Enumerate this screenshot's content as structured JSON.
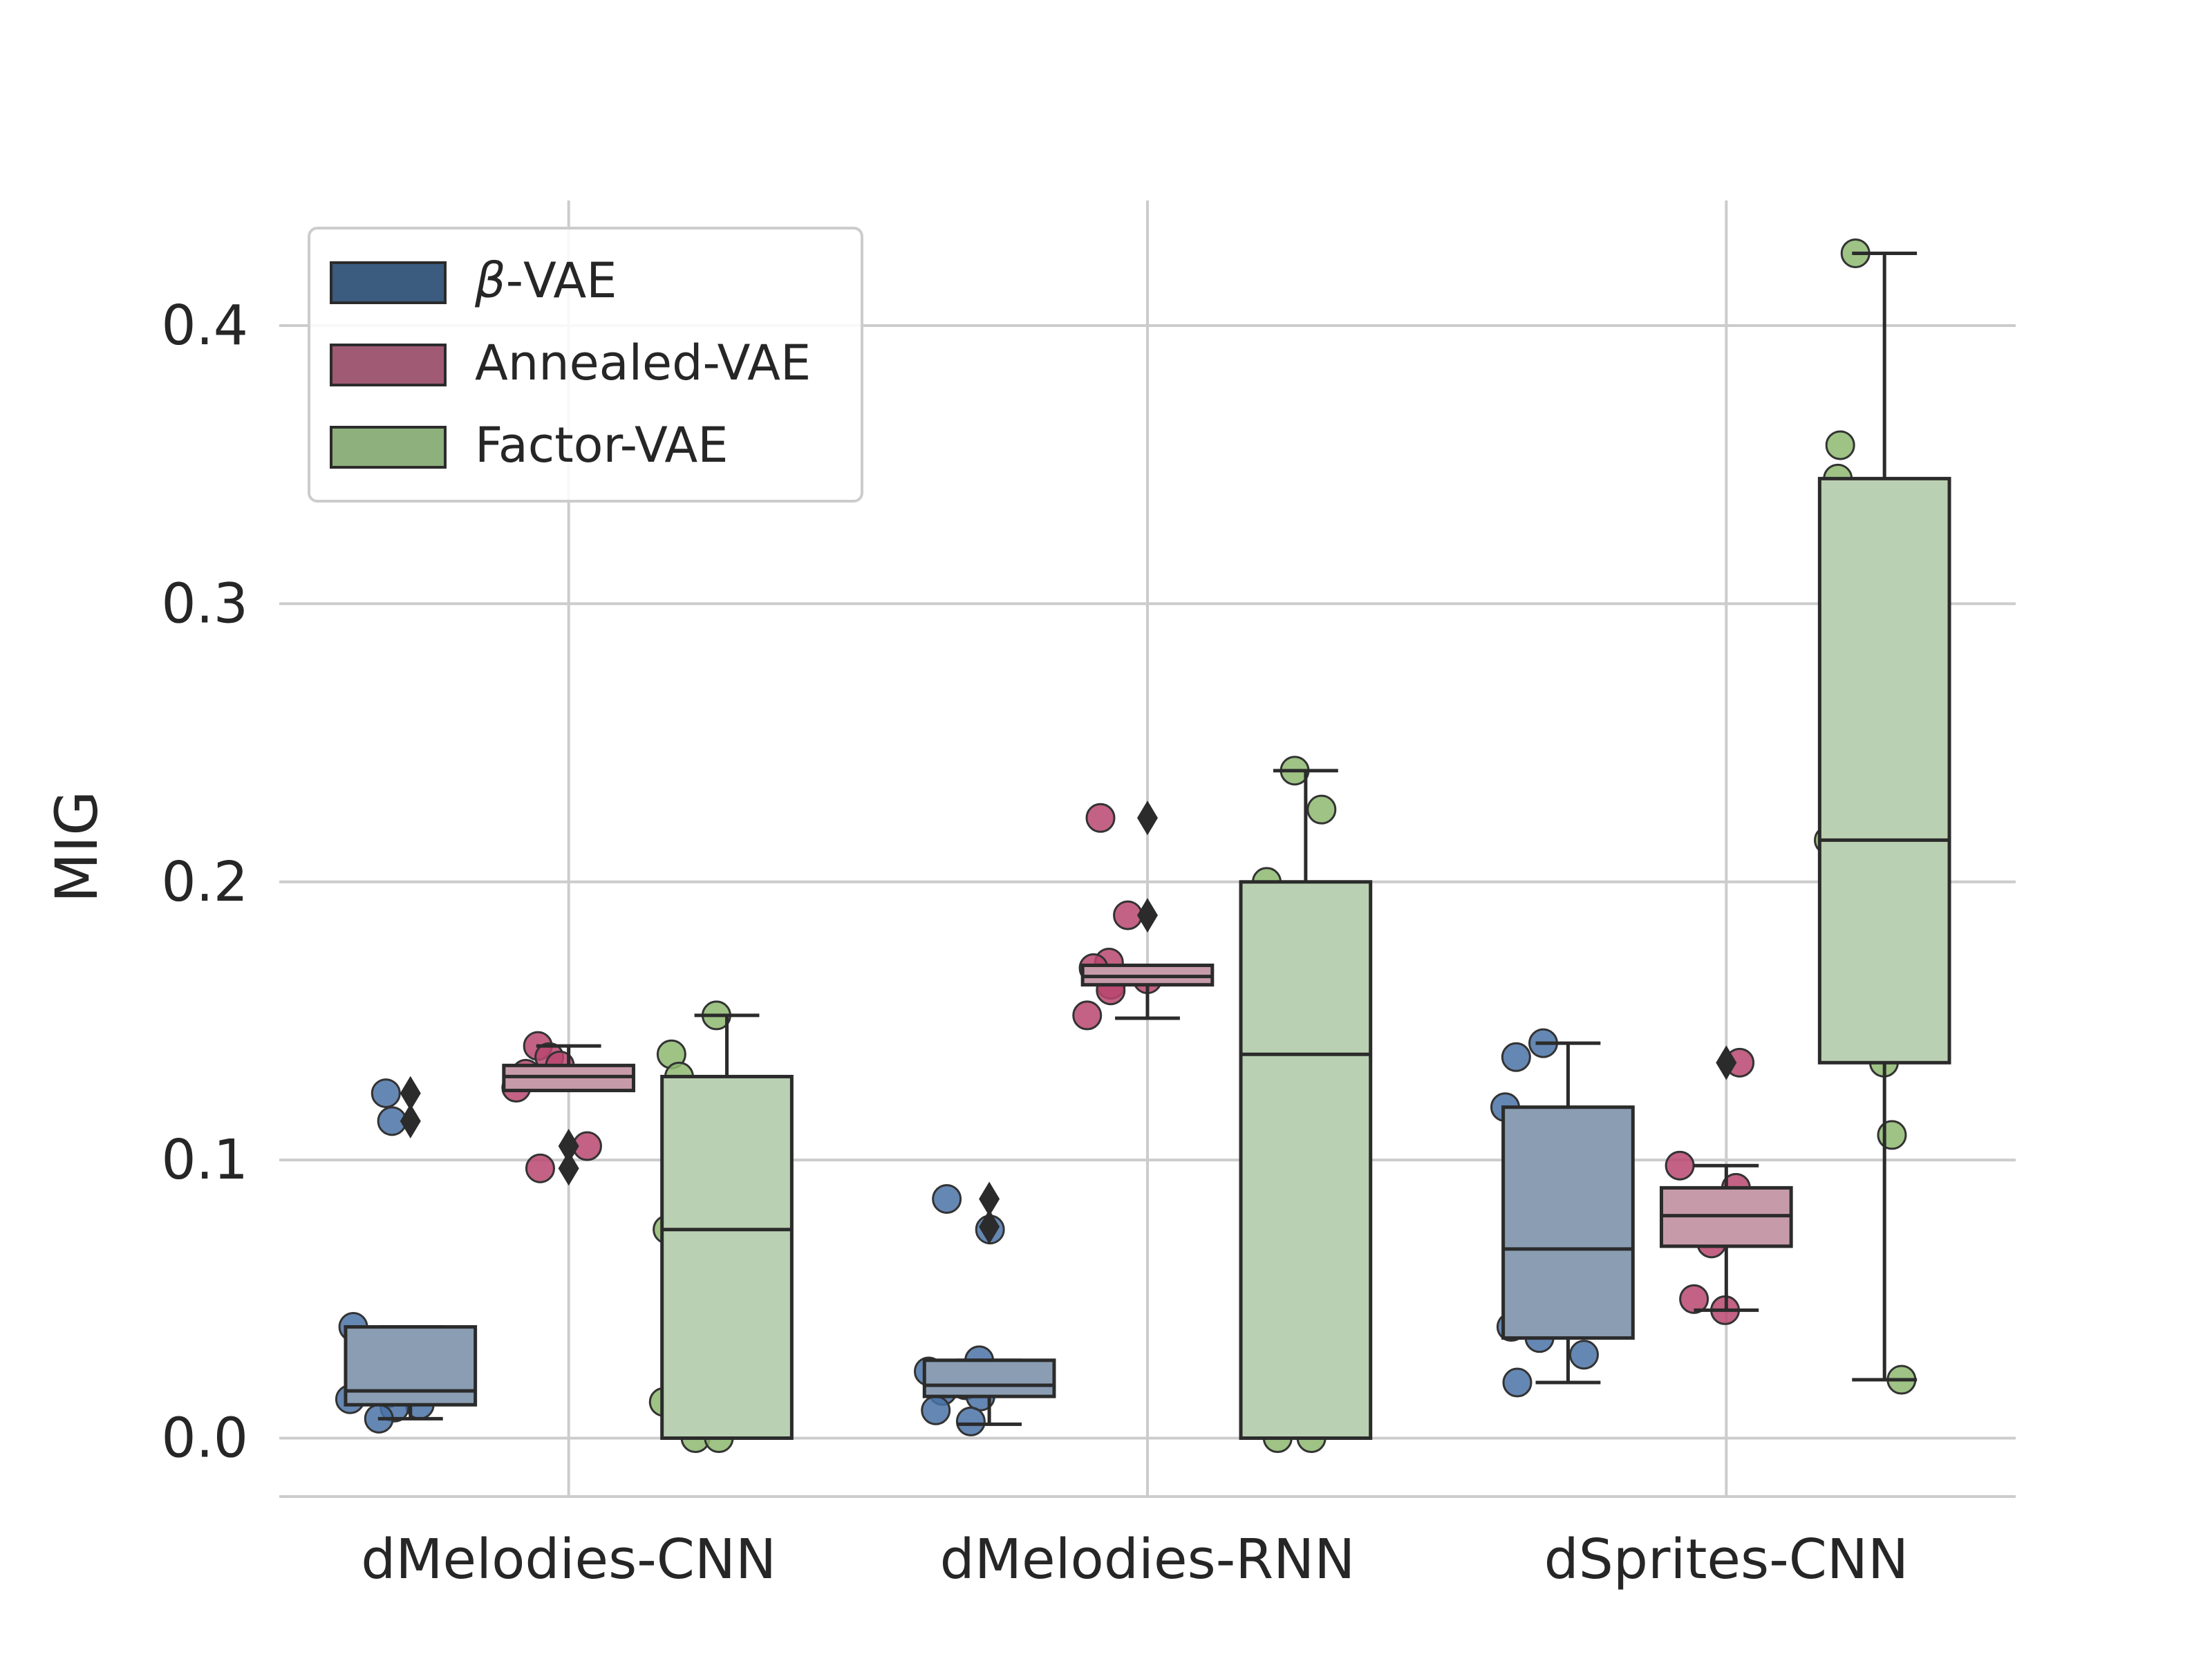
{
  "chart_data": {
    "type": "box",
    "ylabel": "MIG",
    "xlabel": "",
    "ylim": [
      -0.021,
      0.445
    ],
    "yticks": [
      0.0,
      0.1,
      0.2,
      0.3,
      0.4
    ],
    "ytick_labels": [
      "0.0",
      "0.1",
      "0.2",
      "0.3",
      "0.4"
    ],
    "categories": [
      "dMelodies-CNN",
      "dMelodies-RNN",
      "dSprites-CNN"
    ],
    "grid": true,
    "legend_position": "top-left",
    "series": [
      {
        "name": "β-VAE",
        "legend_prefix": "β",
        "legend_suffix": "-VAE",
        "color": "#3b5b7f",
        "box_color": "#8a9db3",
        "point_color": "#4a72a6",
        "boxes": [
          {
            "q1": 0.012,
            "median": 0.017,
            "q3": 0.04,
            "whislo": 0.007,
            "whishi": 0.04,
            "fliers": [
              0.114,
              0.124
            ]
          },
          {
            "q1": 0.015,
            "median": 0.019,
            "q3": 0.028,
            "whislo": 0.005,
            "whishi": 0.028,
            "fliers": [
              0.076,
              0.086
            ]
          },
          {
            "q1": 0.036,
            "median": 0.068,
            "q3": 0.119,
            "whislo": 0.02,
            "whishi": 0.142,
            "fliers": []
          }
        ],
        "points": [
          [
            0.124,
            0.114,
            0.04,
            0.022,
            0.017,
            0.016,
            0.014,
            0.012,
            0.011,
            0.007
          ],
          [
            0.086,
            0.075,
            0.028,
            0.024,
            0.019,
            0.017,
            0.015,
            0.01,
            0.006
          ],
          [
            0.142,
            0.137,
            0.119,
            0.071,
            0.068,
            0.04,
            0.036,
            0.03,
            0.02
          ]
        ]
      },
      {
        "name": "Annealed-VAE",
        "color": "#a05a74",
        "box_color": "#c79aa9",
        "point_color": "#b8466f",
        "boxes": [
          {
            "q1": 0.125,
            "median": 0.13,
            "q3": 0.134,
            "whislo": 0.125,
            "whishi": 0.141,
            "fliers": [
              0.105,
              0.097
            ]
          },
          {
            "q1": 0.163,
            "median": 0.166,
            "q3": 0.17,
            "whislo": 0.151,
            "whishi": 0.17,
            "fliers": [
              0.188,
              0.223
            ]
          },
          {
            "q1": 0.069,
            "median": 0.08,
            "q3": 0.09,
            "whislo": 0.046,
            "whishi": 0.098,
            "fliers": [
              0.135
            ]
          }
        ],
        "points": [
          [
            0.141,
            0.137,
            0.134,
            0.131,
            0.126,
            0.105,
            0.097
          ],
          [
            0.223,
            0.188,
            0.171,
            0.169,
            0.165,
            0.163,
            0.161,
            0.152
          ],
          [
            0.135,
            0.098,
            0.09,
            0.081,
            0.076,
            0.07,
            0.05,
            0.046
          ]
        ]
      },
      {
        "name": "Factor-VAE",
        "color": "#8db07c",
        "box_color": "#bad0b2",
        "point_color": "#8db870",
        "boxes": [
          {
            "q1": 0.0,
            "median": 0.075,
            "q3": 0.13,
            "whislo": 0.0,
            "whishi": 0.152,
            "fliers": []
          },
          {
            "q1": 0.0,
            "median": 0.138,
            "q3": 0.2,
            "whislo": 0.0,
            "whishi": 0.24,
            "fliers": []
          },
          {
            "q1": 0.135,
            "median": 0.215,
            "q3": 0.345,
            "whislo": 0.021,
            "whishi": 0.426,
            "fliers": []
          }
        ],
        "points": [
          [
            0.152,
            0.138,
            0.13,
            0.106,
            0.075,
            0.013,
            0.0,
            0.0
          ],
          [
            0.24,
            0.226,
            0.2,
            0.163,
            0.138,
            0.134,
            0.0,
            0.0
          ],
          [
            0.426,
            0.357,
            0.345,
            0.242,
            0.215,
            0.147,
            0.135,
            0.109,
            0.021
          ]
        ]
      }
    ]
  }
}
